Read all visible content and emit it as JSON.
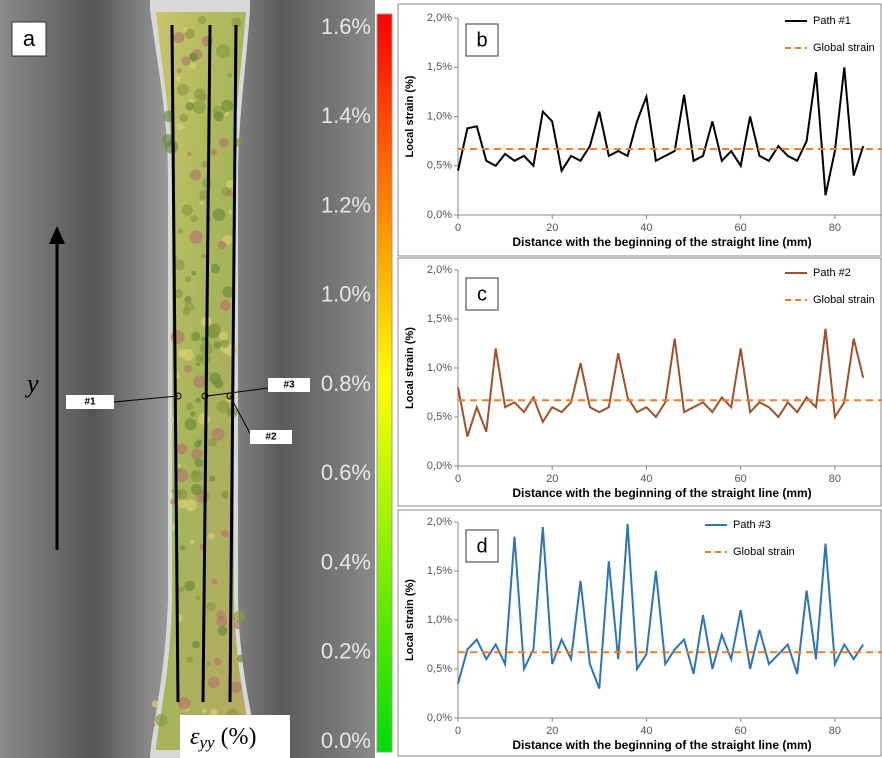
{
  "panel_a": {
    "label": "a",
    "axis_label": "y",
    "markers": [
      "#1",
      "#2",
      "#3"
    ],
    "colorbar": {
      "symbol": "ε",
      "subscript": "yy",
      "unit": "(%)",
      "lim": [
        0,
        1.6
      ],
      "colors": [
        "#00dd00",
        "#ffff00",
        "#ff0000"
      ],
      "ticks": [
        {
          "value": 0,
          "label": "0.0%"
        },
        {
          "value": 0.2,
          "label": "0.2%"
        },
        {
          "value": 0.4,
          "label": "0.4%"
        },
        {
          "value": 0.6,
          "label": "0.6%"
        },
        {
          "value": 0.8,
          "label": "0.8%"
        },
        {
          "value": 1.0,
          "label": "1.0%"
        },
        {
          "value": 1.2,
          "label": "1.2%"
        },
        {
          "value": 1.4,
          "label": "1.4%"
        },
        {
          "value": 1.6,
          "label": "1.6%"
        }
      ]
    }
  },
  "chart_data": [
    {
      "type": "line",
      "panel_label": "b",
      "x_label": "Distance with the beginning of the straight line (mm)",
      "y_label": "Local strain (%)",
      "xlim": [
        0,
        90
      ],
      "xticks": [
        0,
        20,
        40,
        60,
        80
      ],
      "ylim": [
        0,
        2
      ],
      "yticks": [
        {
          "value": 0,
          "label": "0,0%"
        },
        {
          "value": 0.5,
          "label": "0,5%"
        },
        {
          "value": 1,
          "label": "1,0%"
        },
        {
          "value": 1.5,
          "label": "1,5%"
        },
        {
          "value": 2,
          "label": "2,0%"
        }
      ],
      "legend": "upper right",
      "x": [
        0,
        2,
        4,
        6,
        8,
        10,
        12,
        14,
        16,
        18,
        20,
        22,
        24,
        26,
        28,
        30,
        32,
        34,
        36,
        38,
        40,
        42,
        44,
        46,
        48,
        50,
        52,
        54,
        56,
        58,
        60,
        62,
        64,
        66,
        68,
        70,
        72,
        74,
        76,
        78,
        80,
        82,
        84,
        86
      ],
      "series": [
        {
          "name": "Path #1",
          "color": "#000000",
          "values": [
            0.45,
            0.88,
            0.9,
            0.55,
            0.5,
            0.62,
            0.55,
            0.6,
            0.5,
            1.05,
            0.95,
            0.45,
            0.6,
            0.55,
            0.7,
            1.05,
            0.6,
            0.65,
            0.6,
            0.95,
            1.2,
            0.55,
            0.6,
            0.65,
            1.22,
            0.55,
            0.6,
            0.95,
            0.55,
            0.65,
            0.5,
            1.0,
            0.6,
            0.55,
            0.7,
            0.6,
            0.55,
            0.75,
            1.45,
            0.2,
            0.65,
            1.5,
            0.4,
            0.7
          ]
        },
        {
          "name": "Global strain",
          "color": "#ed7d31",
          "dashed": true,
          "x": [
            0,
            90
          ],
          "values": [
            0.67,
            0.67
          ]
        }
      ]
    },
    {
      "type": "line",
      "panel_label": "c",
      "x_label": "Distance with the beginning of the straight line (mm)",
      "y_label": "Local strain (%)",
      "xlim": [
        0,
        90
      ],
      "xticks": [
        0,
        20,
        40,
        60,
        80
      ],
      "ylim": [
        0,
        2
      ],
      "yticks": [
        {
          "value": 0,
          "label": "0,0%"
        },
        {
          "value": 0.5,
          "label": "0,5%"
        },
        {
          "value": 1,
          "label": "1,0%"
        },
        {
          "value": 1.5,
          "label": "1,5%"
        },
        {
          "value": 2,
          "label": "2,0%"
        }
      ],
      "legend": "upper right",
      "x": [
        0,
        2,
        4,
        6,
        8,
        10,
        12,
        14,
        16,
        18,
        20,
        22,
        24,
        26,
        28,
        30,
        32,
        34,
        36,
        38,
        40,
        42,
        44,
        46,
        48,
        50,
        52,
        54,
        56,
        58,
        60,
        62,
        64,
        66,
        68,
        70,
        72,
        74,
        76,
        78,
        80,
        82,
        84,
        86
      ],
      "series": [
        {
          "name": "Path #2",
          "color": "#a0522d",
          "values": [
            0.8,
            0.3,
            0.6,
            0.35,
            1.2,
            0.6,
            0.65,
            0.55,
            0.7,
            0.45,
            0.6,
            0.55,
            0.65,
            1.05,
            0.6,
            0.55,
            0.6,
            1.15,
            0.7,
            0.55,
            0.6,
            0.5,
            0.65,
            1.3,
            0.55,
            0.6,
            0.65,
            0.55,
            0.7,
            0.6,
            1.2,
            0.55,
            0.65,
            0.6,
            0.5,
            0.65,
            0.55,
            0.7,
            0.6,
            1.4,
            0.5,
            0.65,
            1.3,
            0.9
          ]
        },
        {
          "name": "Global strain",
          "color": "#ed7d31",
          "dashed": true,
          "x": [
            0,
            90
          ],
          "values": [
            0.67,
            0.67
          ]
        }
      ]
    },
    {
      "type": "line",
      "panel_label": "d",
      "x_label": "Distance with the beginning of the straight line (mm)",
      "y_label": "Local strain (%)",
      "xlim": [
        0,
        90
      ],
      "xticks": [
        0,
        20,
        40,
        60,
        80
      ],
      "ylim": [
        0,
        2
      ],
      "yticks": [
        {
          "value": 0,
          "label": "0,0%"
        },
        {
          "value": 0.5,
          "label": "0,5%"
        },
        {
          "value": 1,
          "label": "1,0%"
        },
        {
          "value": 1.5,
          "label": "1,5%"
        },
        {
          "value": 2,
          "label": "2,0%"
        }
      ],
      "legend": "upper center",
      "x": [
        0,
        2,
        4,
        6,
        8,
        10,
        12,
        14,
        16,
        18,
        20,
        22,
        24,
        26,
        28,
        30,
        32,
        34,
        36,
        38,
        40,
        42,
        44,
        46,
        48,
        50,
        52,
        54,
        56,
        58,
        60,
        62,
        64,
        66,
        68,
        70,
        72,
        74,
        76,
        78,
        80,
        82,
        84,
        86
      ],
      "series": [
        {
          "name": "Path #3",
          "color": "#2e75b6",
          "values": [
            0.35,
            0.7,
            0.8,
            0.6,
            0.75,
            0.55,
            1.85,
            0.5,
            0.7,
            1.95,
            0.55,
            0.8,
            0.6,
            1.4,
            0.55,
            0.3,
            1.6,
            0.6,
            1.98,
            0.5,
            0.65,
            1.5,
            0.55,
            0.7,
            0.8,
            0.45,
            1.05,
            0.5,
            0.85,
            0.6,
            1.1,
            0.5,
            0.9,
            0.55,
            0.65,
            0.75,
            0.45,
            1.3,
            0.6,
            1.78,
            0.55,
            0.75,
            0.6,
            0.75
          ]
        },
        {
          "name": "Global strain",
          "color": "#ed7d31",
          "dashed": true,
          "x": [
            0,
            90
          ],
          "values": [
            0.67,
            0.67
          ]
        }
      ]
    }
  ]
}
